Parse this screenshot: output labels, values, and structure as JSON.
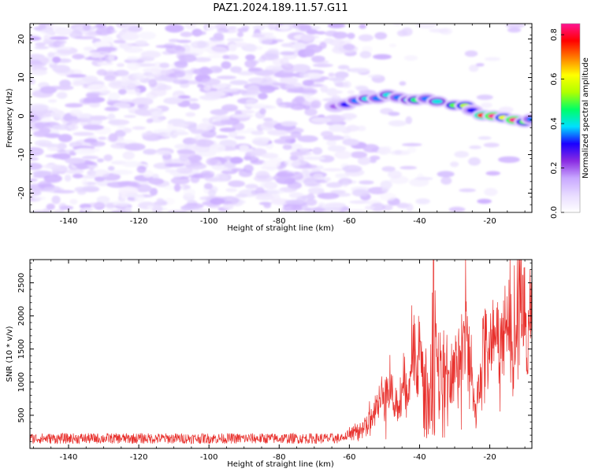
{
  "figure": {
    "title": "PAZ1.2024.189.11.57.G11"
  },
  "chart_data": [
    {
      "type": "heatmap",
      "title": "PAZ1.2024.189.11.57.G11",
      "xlabel": "Height of straight line (km)",
      "ylabel": "Frequency (Hz)",
      "xlim": [
        -151,
        -8
      ],
      "ylim": [
        -25,
        24
      ],
      "x_ticks": [
        -140,
        -120,
        -100,
        -80,
        -60,
        -40,
        -20
      ],
      "y_ticks": [
        -20,
        -10,
        0,
        10,
        20
      ],
      "colorbar": {
        "label": "Normalized spectral amplitude",
        "range": [
          0,
          0.85
        ],
        "ticks": [
          0.0,
          0.2,
          0.4,
          0.6,
          0.8
        ],
        "stops": [
          "#ffffff",
          "#e8dcff",
          "#c8a8ff",
          "#8a2be2",
          "#1a00ff",
          "#00e0ff",
          "#00ff66",
          "#b0ff00",
          "#ffff00",
          "#ff7f00",
          "#ff0000",
          "#ff1493"
        ]
      },
      "ridge": [
        {
          "x": -64,
          "f": 2.5,
          "a": 0.2
        },
        {
          "x": -61,
          "f": 3.0,
          "a": 0.3
        },
        {
          "x": -58,
          "f": 4.0,
          "a": 0.35
        },
        {
          "x": -55,
          "f": 4.5,
          "a": 0.4
        },
        {
          "x": -52,
          "f": 4.6,
          "a": 0.35
        },
        {
          "x": -49,
          "f": 5.5,
          "a": 0.4
        },
        {
          "x": -46,
          "f": 4.8,
          "a": 0.35
        },
        {
          "x": -43,
          "f": 4.2,
          "a": 0.4
        },
        {
          "x": -41,
          "f": 4.2,
          "a": 0.45
        },
        {
          "x": -38,
          "f": 4.5,
          "a": 0.35
        },
        {
          "x": -35,
          "f": 3.8,
          "a": 0.4
        },
        {
          "x": -30,
          "f": 2.8,
          "a": 0.5
        },
        {
          "x": -27,
          "f": 2.7,
          "a": 0.55
        },
        {
          "x": -25,
          "f": 1.5,
          "a": 0.3
        },
        {
          "x": -22,
          "f": 0.2,
          "a": 0.75
        },
        {
          "x": -19,
          "f": 0.0,
          "a": 0.85
        },
        {
          "x": -16,
          "f": -0.4,
          "a": 0.6
        },
        {
          "x": -13,
          "f": -1.0,
          "a": 0.85
        },
        {
          "x": -10,
          "f": -1.5,
          "a": 0.5
        },
        {
          "x": -8,
          "f": -0.8,
          "a": 0.35
        }
      ]
    },
    {
      "type": "line",
      "xlabel": "Height of straight line (km)",
      "ylabel": "SNR (10 * v/v)",
      "xlim": [
        -151,
        -8
      ],
      "ylim": [
        0,
        2850
      ],
      "x_ticks": [
        -140,
        -120,
        -100,
        -80,
        -60,
        -40,
        -20
      ],
      "y_ticks": [
        500,
        1000,
        1500,
        2000,
        2500
      ],
      "color": "#e8302c",
      "envelope": [
        {
          "x": -151,
          "y": 150
        },
        {
          "x": -62,
          "y": 150
        },
        {
          "x": -58,
          "y": 250
        },
        {
          "x": -54,
          "y": 450
        },
        {
          "x": -51,
          "y": 700
        },
        {
          "x": -49,
          "y": 1100
        },
        {
          "x": -47,
          "y": 600
        },
        {
          "x": -45,
          "y": 750
        },
        {
          "x": -43,
          "y": 1150
        },
        {
          "x": -41,
          "y": 1650
        },
        {
          "x": -39,
          "y": 1200
        },
        {
          "x": -37,
          "y": 900
        },
        {
          "x": -36,
          "y": 2850
        },
        {
          "x": -35,
          "y": 1400
        },
        {
          "x": -33,
          "y": 1100
        },
        {
          "x": -31,
          "y": 900
        },
        {
          "x": -29,
          "y": 1500
        },
        {
          "x": -27,
          "y": 1750
        },
        {
          "x": -25,
          "y": 900
        },
        {
          "x": -24,
          "y": 500
        },
        {
          "x": -22,
          "y": 1400
        },
        {
          "x": -19,
          "y": 1600
        },
        {
          "x": -16,
          "y": 1750
        },
        {
          "x": -13,
          "y": 1650
        },
        {
          "x": -11,
          "y": 2450
        },
        {
          "x": -10,
          "y": 1700
        },
        {
          "x": -8,
          "y": 2050
        }
      ]
    }
  ]
}
